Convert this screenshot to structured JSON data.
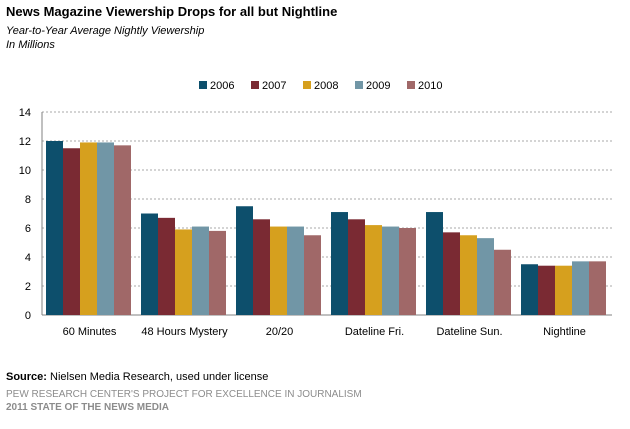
{
  "chart_data": {
    "type": "bar",
    "title": "News Magazine Viewership Drops for all but Nightline",
    "subtitle_lines": [
      "Year-to-Year Average Nightly Viewership",
      "In Millions"
    ],
    "categories": [
      "60 Minutes",
      "48 Hours Mystery",
      "20/20",
      "Dateline Fri.",
      "Dateline Sun.",
      "Nightline"
    ],
    "series": [
      {
        "name": "2006",
        "color": "#0d4f6c",
        "values": [
          12.0,
          7.0,
          7.5,
          7.1,
          7.1,
          3.5
        ]
      },
      {
        "name": "2007",
        "color": "#7a2a33",
        "values": [
          11.5,
          6.7,
          6.6,
          6.6,
          5.7,
          3.4
        ]
      },
      {
        "name": "2008",
        "color": "#d6a01e",
        "values": [
          11.9,
          5.9,
          6.1,
          6.2,
          5.5,
          3.4
        ]
      },
      {
        "name": "2009",
        "color": "#7196a6",
        "values": [
          11.9,
          6.1,
          6.1,
          6.1,
          5.3,
          3.7
        ]
      },
      {
        "name": "2010",
        "color": "#a06868",
        "values": [
          11.7,
          5.8,
          5.5,
          6.0,
          4.5,
          3.7
        ]
      }
    ],
    "xlabel": "",
    "ylabel": "",
    "ylim": [
      0,
      14
    ],
    "yticks": [
      0,
      2,
      4,
      6,
      8,
      10,
      12,
      14
    ],
    "grid": "horizontal dotted",
    "legend_position": "top-center"
  },
  "footer": {
    "source_label": "Source:",
    "source_text": " Nielsen Media Research, used under license",
    "credit": "PEW RESEARCH CENTER'S PROJECT FOR EXCELLENCE IN JOURNALISM",
    "report": "2011 STATE OF THE NEWS MEDIA"
  }
}
